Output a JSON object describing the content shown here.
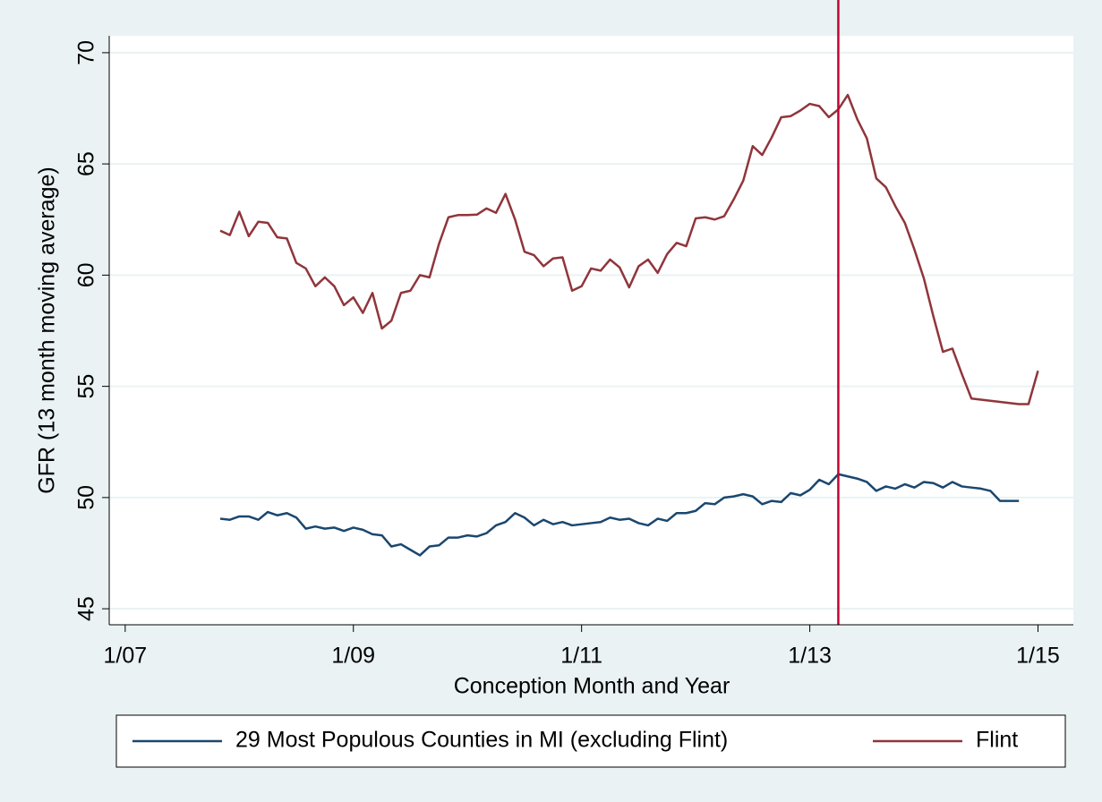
{
  "chart_data": {
    "type": "line",
    "x_label": "Conception Month and Year",
    "y_label": "GFR (13 month moving average)",
    "x": [
      2007.833,
      2007.917,
      2008.0,
      2008.083,
      2008.167,
      2008.25,
      2008.333,
      2008.417,
      2008.5,
      2008.583,
      2008.667,
      2008.75,
      2008.833,
      2008.917,
      2009.0,
      2009.083,
      2009.167,
      2009.25,
      2009.333,
      2009.417,
      2009.5,
      2009.583,
      2009.667,
      2009.75,
      2009.833,
      2009.917,
      2010.0,
      2010.083,
      2010.167,
      2010.25,
      2010.333,
      2010.417,
      2010.5,
      2010.583,
      2010.667,
      2010.75,
      2010.833,
      2010.917,
      2011.0,
      2011.083,
      2011.167,
      2011.25,
      2011.333,
      2011.417,
      2011.5,
      2011.583,
      2011.667,
      2011.75,
      2011.833,
      2011.917,
      2012.0,
      2012.083,
      2012.167,
      2012.25,
      2012.333,
      2012.417,
      2012.5,
      2012.583,
      2012.667,
      2012.75,
      2012.833,
      2012.917,
      2013.0,
      2013.083,
      2013.167,
      2013.25,
      2013.333,
      2013.417,
      2013.5,
      2013.583,
      2013.667,
      2013.75,
      2013.833,
      2013.917,
      2014.0,
      2014.083,
      2014.167,
      2014.25,
      2014.333,
      2014.417,
      2014.5,
      2014.583,
      2014.667,
      2014.75,
      2014.833,
      2014.917,
      2015.0
    ],
    "series": [
      {
        "name": "29 Most Populous Counties in MI (excluding Flint)",
        "color": "#1a476f",
        "values": [
          49.05,
          49.0,
          49.15,
          49.15,
          49.0,
          49.35,
          49.2,
          49.3,
          49.1,
          48.6,
          48.7,
          48.6,
          48.65,
          48.5,
          48.65,
          48.55,
          48.35,
          48.3,
          47.8,
          47.9,
          47.65,
          47.4,
          47.8,
          47.85,
          48.2,
          48.2,
          48.3,
          48.25,
          48.4,
          48.75,
          48.9,
          49.3,
          49.1,
          48.75,
          49.0,
          48.8,
          48.9,
          48.75,
          48.8,
          48.85,
          48.9,
          49.1,
          49.0,
          49.05,
          48.85,
          48.75,
          49.05,
          48.95,
          49.3,
          49.3,
          49.4,
          49.75,
          49.7,
          50.0,
          50.05,
          50.15,
          50.05,
          49.7,
          49.85,
          49.8,
          50.2,
          50.1,
          50.35,
          50.8,
          50.6,
          51.05,
          50.95,
          50.85,
          50.7,
          50.3,
          50.5,
          50.4,
          50.6,
          50.45,
          50.7,
          50.65,
          50.45,
          50.7,
          50.5,
          50.45,
          50.4,
          50.3,
          49.85,
          49.85,
          49.85,
          null,
          null
        ]
      },
      {
        "name": "Flint",
        "color": "#90353b",
        "values": [
          62.0,
          61.8,
          62.85,
          61.75,
          62.4,
          62.35,
          61.7,
          61.65,
          60.55,
          60.3,
          59.5,
          59.9,
          59.5,
          58.65,
          59.0,
          58.3,
          59.2,
          57.6,
          57.95,
          59.2,
          59.3,
          60.0,
          59.9,
          61.4,
          62.6,
          62.7,
          62.7,
          62.72,
          63.0,
          62.8,
          63.65,
          62.5,
          61.05,
          60.9,
          60.4,
          60.75,
          60.8,
          59.3,
          59.5,
          60.3,
          60.2,
          60.7,
          60.35,
          59.45,
          60.4,
          60.7,
          60.1,
          60.95,
          61.45,
          61.3,
          62.55,
          62.6,
          62.5,
          62.65,
          63.4,
          64.25,
          65.8,
          65.4,
          66.2,
          67.1,
          67.15,
          67.4,
          67.7,
          67.6,
          67.1,
          67.45,
          68.1,
          67.0,
          66.15,
          64.35,
          63.95,
          63.1,
          62.35,
          61.15,
          59.85,
          58.15,
          56.55,
          56.7,
          55.55,
          54.45,
          54.4,
          54.35,
          54.3,
          54.25,
          54.2,
          54.2,
          55.7
        ]
      }
    ],
    "vline": 2013.25,
    "vline_color": "#c10534",
    "xlim": [
      2006.86,
      2015.31
    ],
    "xticks": [
      {
        "value": 2007,
        "label": "1/07"
      },
      {
        "value": 2009,
        "label": "1/09"
      },
      {
        "value": 2011,
        "label": "1/11"
      },
      {
        "value": 2013,
        "label": "1/13"
      },
      {
        "value": 2015,
        "label": "1/15"
      }
    ],
    "ylim": [
      44.28,
      70.76
    ],
    "yticks": [
      45,
      50,
      55,
      60,
      65,
      70
    ],
    "grid": true
  }
}
